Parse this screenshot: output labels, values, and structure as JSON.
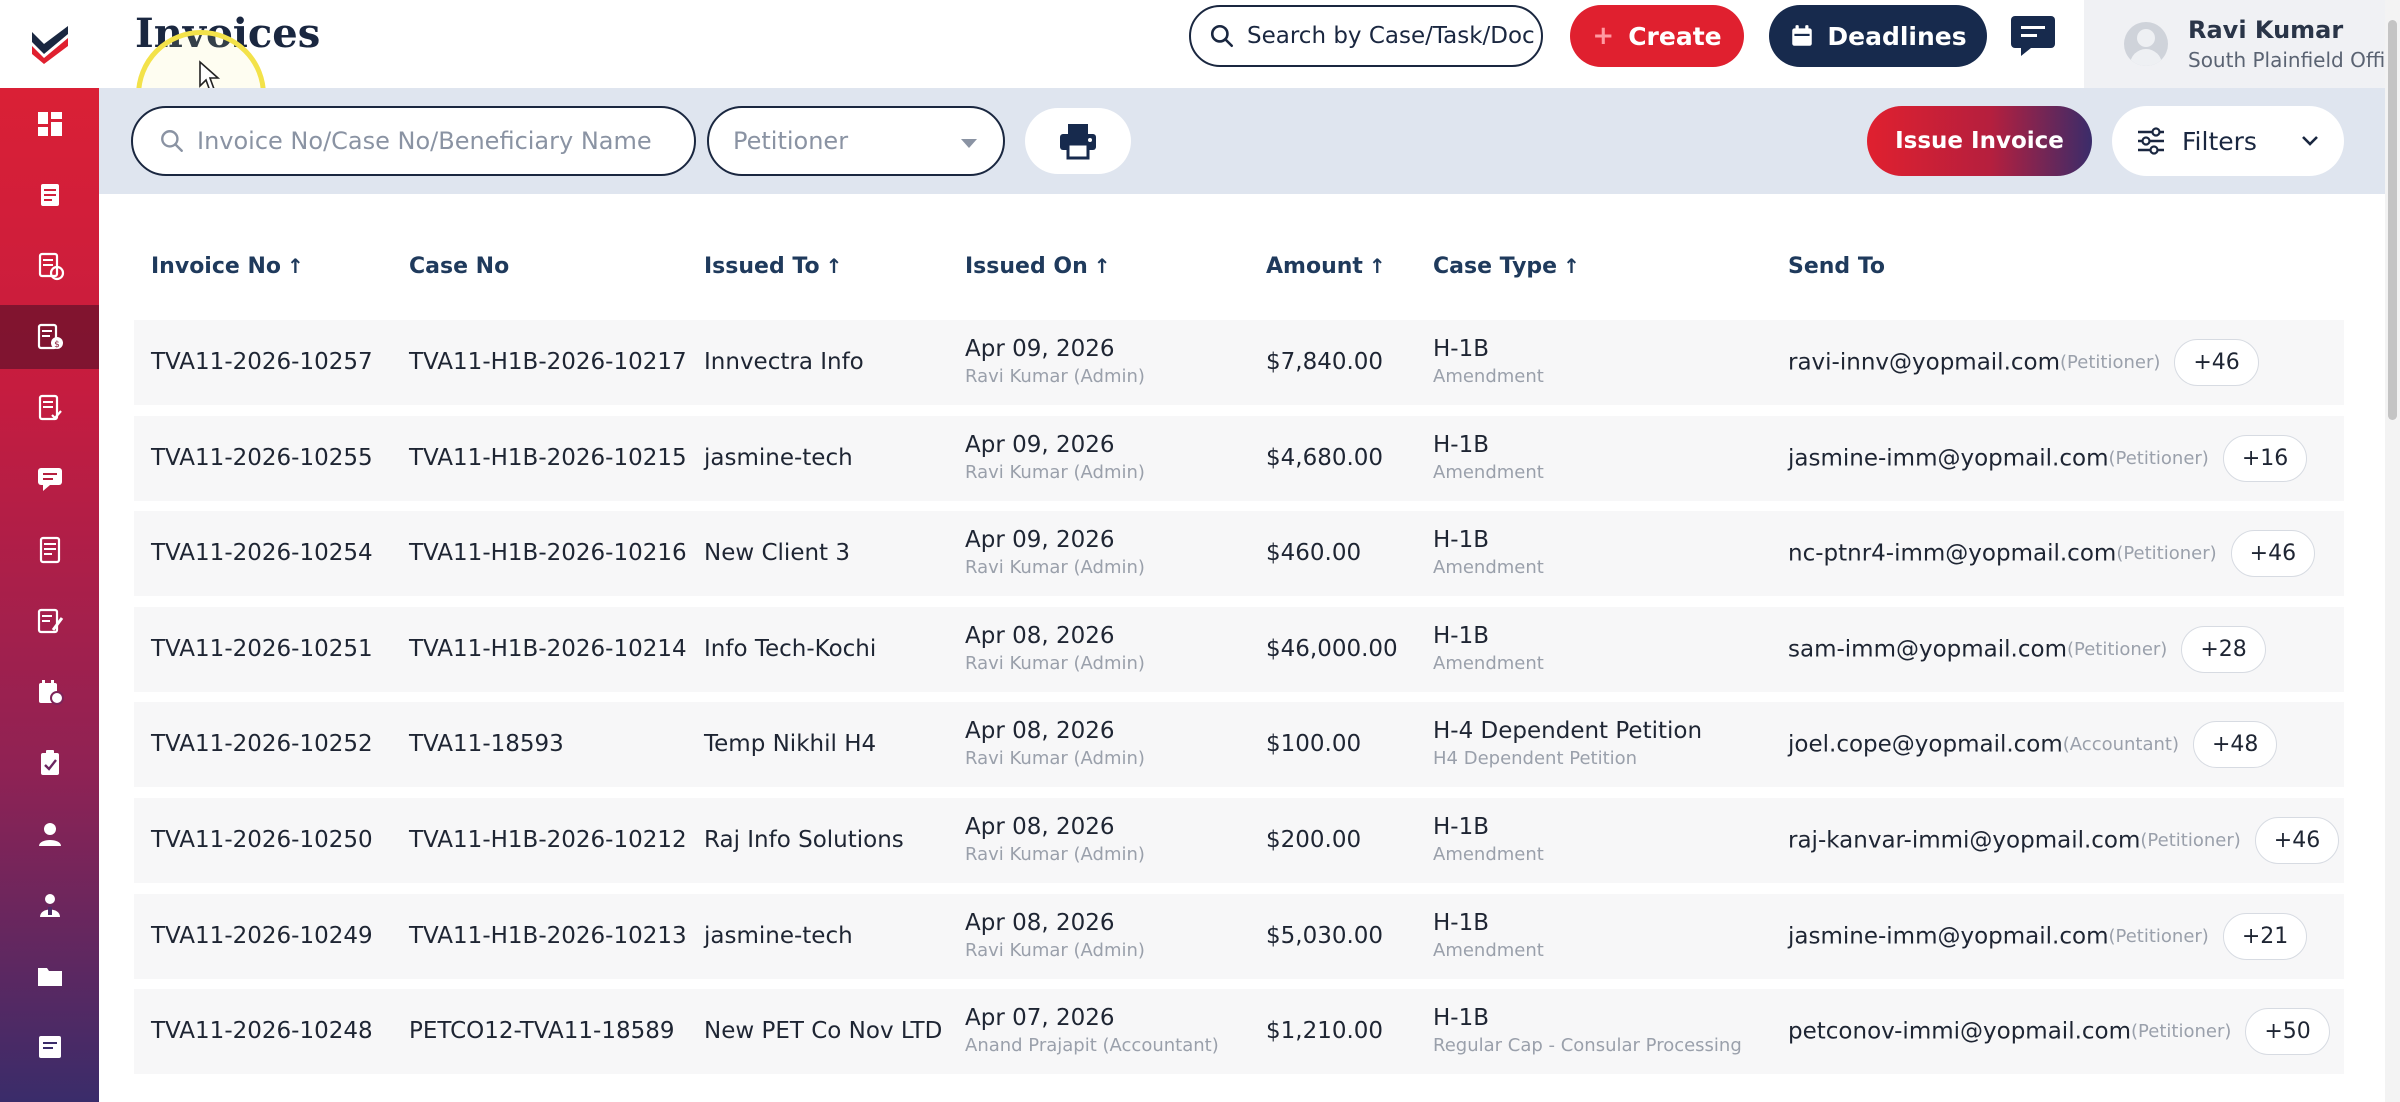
{
  "header": {
    "page_title": "Invoices",
    "search_placeholder": "Search by Case/Task/Doc",
    "create_label": "Create",
    "deadlines_label": "Deadlines",
    "user_name": "Ravi Kumar",
    "user_office": "South Plainfield Office"
  },
  "sidebar": {
    "items": [
      {
        "icon": "dashboard-icon"
      },
      {
        "icon": "cases-icon"
      },
      {
        "icon": "tasks-icon"
      },
      {
        "icon": "invoices-icon",
        "active": true
      },
      {
        "icon": "documents-icon"
      },
      {
        "icon": "messages-icon"
      },
      {
        "icon": "reports-icon"
      },
      {
        "icon": "forms-icon"
      },
      {
        "icon": "calendar-icon"
      },
      {
        "icon": "checklist-icon"
      },
      {
        "icon": "user-icon"
      },
      {
        "icon": "contacts-icon"
      },
      {
        "icon": "folder-icon"
      },
      {
        "icon": "notes-icon"
      }
    ]
  },
  "filters": {
    "search_placeholder": "Invoice No/Case No/Beneficiary Name",
    "petitioner_placeholder": "Petitioner",
    "issue_invoice_label": "Issue Invoice",
    "filters_label": "Filters"
  },
  "table": {
    "columns": [
      "Invoice No",
      "Case No",
      "Issued To",
      "Issued On",
      "Amount",
      "Case Type",
      "Send To"
    ],
    "sort_arrow": "↑",
    "rows": [
      {
        "invoice_no": "TVA11-2026-10257",
        "case_no": "TVA11-H1B-2026-10217",
        "issued_to": "Innvectra Info",
        "issued_on": "Apr 09, 2026",
        "issued_by": "Ravi Kumar (Admin)",
        "amount": "$7,840.00",
        "case_type": "H-1B",
        "case_subtype": "Amendment",
        "email": "ravi-innv@yopmail.com",
        "role": "(Petitioner)",
        "extra": "+46"
      },
      {
        "invoice_no": "TVA11-2026-10255",
        "case_no": "TVA11-H1B-2026-10215",
        "issued_to": "jasmine-tech",
        "issued_on": "Apr 09, 2026",
        "issued_by": "Ravi Kumar (Admin)",
        "amount": "$4,680.00",
        "case_type": "H-1B",
        "case_subtype": "Amendment",
        "email": "jasmine-imm@yopmail.com",
        "role": "(Petitioner)",
        "extra": "+16"
      },
      {
        "invoice_no": "TVA11-2026-10254",
        "case_no": "TVA11-H1B-2026-10216",
        "issued_to": "New Client 3",
        "issued_on": "Apr 09, 2026",
        "issued_by": "Ravi Kumar (Admin)",
        "amount": "$460.00",
        "case_type": "H-1B",
        "case_subtype": "Amendment",
        "email": "nc-ptnr4-imm@yopmail.com",
        "role": "(Petitioner)",
        "extra": "+46"
      },
      {
        "invoice_no": "TVA11-2026-10251",
        "case_no": "TVA11-H1B-2026-10214",
        "issued_to": "Info Tech-Kochi",
        "issued_on": "Apr 08, 2026",
        "issued_by": "Ravi Kumar (Admin)",
        "amount": "$46,000.00",
        "case_type": "H-1B",
        "case_subtype": "Amendment",
        "email": "sam-imm@yopmail.com",
        "role": "(Petitioner)",
        "extra": "+28"
      },
      {
        "invoice_no": "TVA11-2026-10252",
        "case_no": "TVA11-18593",
        "issued_to": "Temp Nikhil H4",
        "issued_on": "Apr 08, 2026",
        "issued_by": "Ravi Kumar (Admin)",
        "amount": "$100.00",
        "case_type": "H-4 Dependent Petition",
        "case_subtype": "H4 Dependent Petition",
        "email": "joel.cope@yopmail.com",
        "role": "(Accountant)",
        "extra": "+48"
      },
      {
        "invoice_no": "TVA11-2026-10250",
        "case_no": "TVA11-H1B-2026-10212",
        "issued_to": "Raj Info Solutions",
        "issued_on": "Apr 08, 2026",
        "issued_by": "Ravi Kumar (Admin)",
        "amount": "$200.00",
        "case_type": "H-1B",
        "case_subtype": "Amendment",
        "email": "raj-kanvar-immi@yopmail.com",
        "role": "(Petitioner)",
        "extra": "+46"
      },
      {
        "invoice_no": "TVA11-2026-10249",
        "case_no": "TVA11-H1B-2026-10213",
        "issued_to": "jasmine-tech",
        "issued_on": "Apr 08, 2026",
        "issued_by": "Ravi Kumar (Admin)",
        "amount": "$5,030.00",
        "case_type": "H-1B",
        "case_subtype": "Amendment",
        "email": "jasmine-imm@yopmail.com",
        "role": "(Petitioner)",
        "extra": "+21"
      },
      {
        "invoice_no": "TVA11-2026-10248",
        "case_no": "PETCO12-TVA11-18589",
        "issued_to": "New PET Co Nov LTD",
        "issued_on": "Apr 07, 2026",
        "issued_by": "Anand Prajapit (Accountant)",
        "amount": "$1,210.00",
        "case_type": "H-1B",
        "case_subtype": "Regular Cap - Consular Processing",
        "email": "petconov-immi@yopmail.com",
        "role": "(Petitioner)",
        "extra": "+50"
      }
    ]
  },
  "colors": {
    "brand_red": "#e0202f",
    "navy": "#172a4d",
    "header_text": "#1f3a5c"
  }
}
